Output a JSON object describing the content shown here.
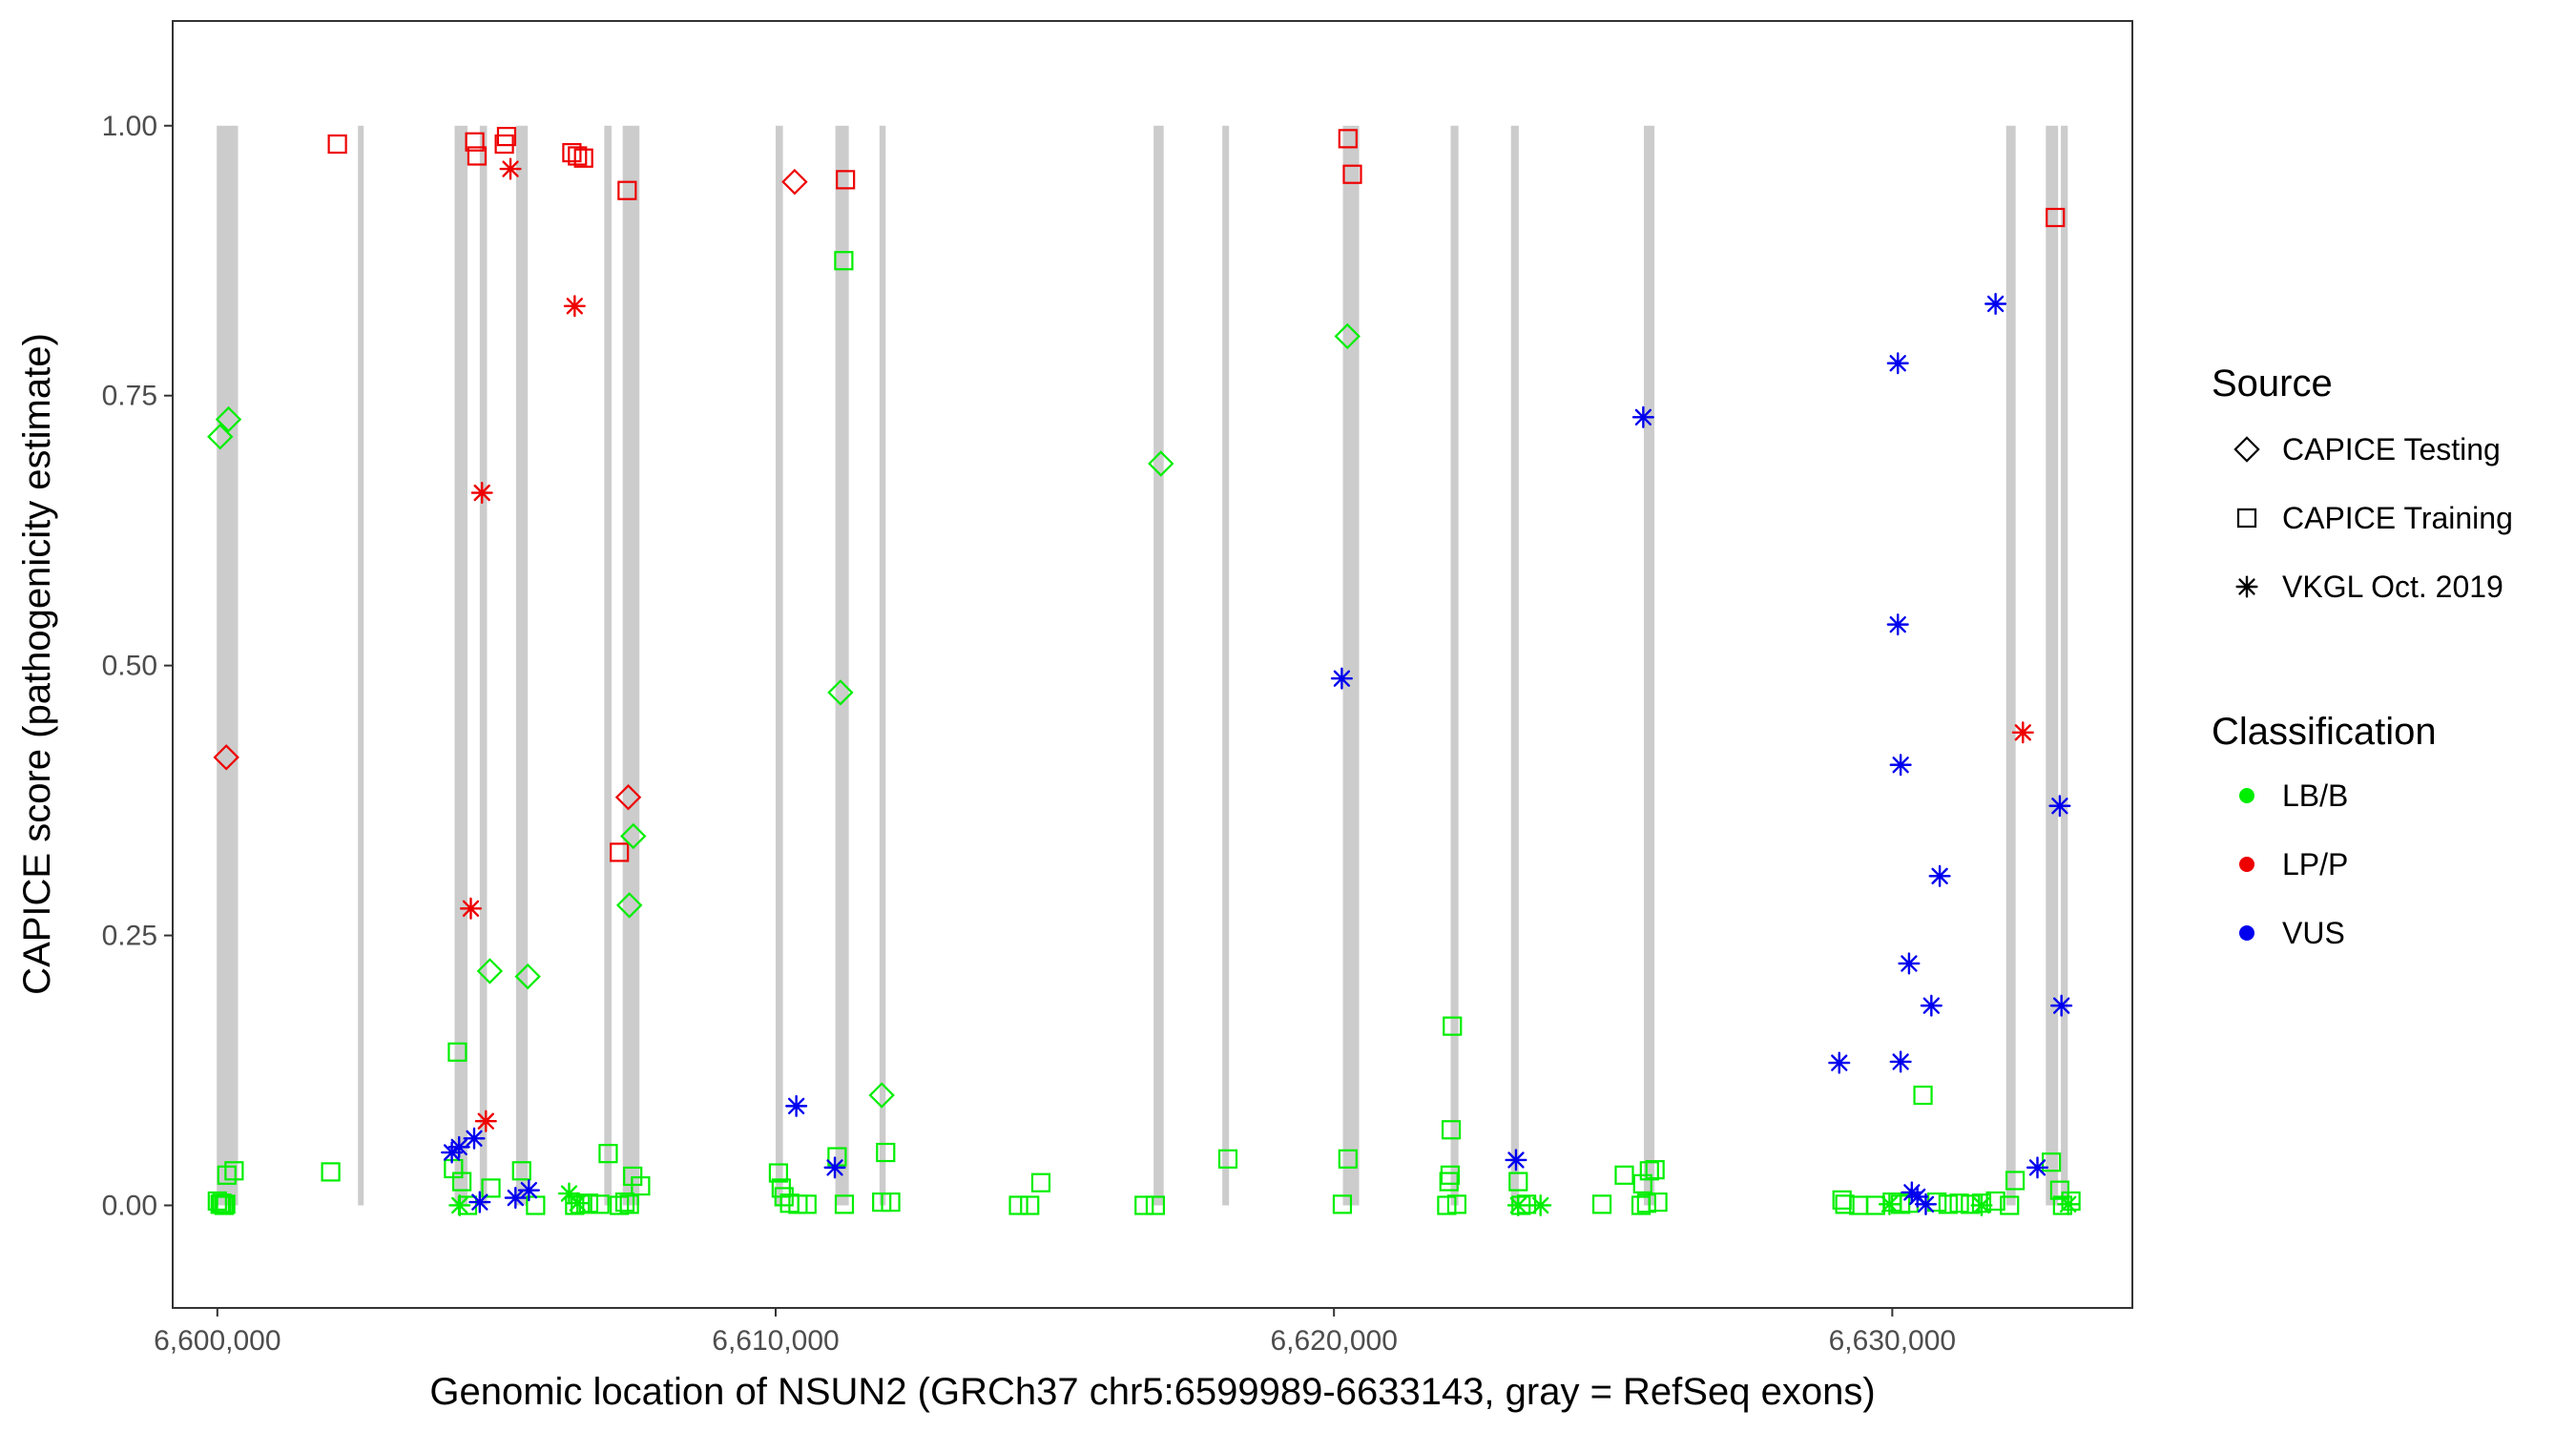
{
  "chart_data": {
    "type": "scatter",
    "xlabel": "Genomic location of NSUN2 (GRCh37 chr5:6599989-6633143, gray = RefSeq exons)",
    "ylabel": "CAPICE score (pathogenicity estimate)",
    "xlim": [
      6599200,
      6634300
    ],
    "ylim": [
      -0.095,
      1.097
    ],
    "x_ticks": [
      6600000,
      6610000,
      6620000,
      6630000
    ],
    "x_tick_labels": [
      "6,600,000",
      "6,610,000",
      "6,620,000",
      "6,630,000"
    ],
    "y_ticks": [
      0,
      0.25,
      0.5,
      0.75,
      1.0
    ],
    "y_tick_labels": [
      "0.00",
      "0.25",
      "0.50",
      "0.75",
      "1.00"
    ],
    "grid": false,
    "exons": [
      [
        6599989,
        6600370
      ],
      [
        6602520,
        6602620
      ],
      [
        6604250,
        6604480
      ],
      [
        6604700,
        6604830
      ],
      [
        6605350,
        6605560
      ],
      [
        6606930,
        6607060
      ],
      [
        6607260,
        6607560
      ],
      [
        6610000,
        6610130
      ],
      [
        6611070,
        6611310
      ],
      [
        6611860,
        6611970
      ],
      [
        6616770,
        6616950
      ],
      [
        6618000,
        6618120
      ],
      [
        6620160,
        6620450
      ],
      [
        6622090,
        6622230
      ],
      [
        6623170,
        6623310
      ],
      [
        6625550,
        6625740
      ],
      [
        6632040,
        6632210
      ],
      [
        6632750,
        6632970
      ],
      [
        6633020,
        6633143
      ]
    ],
    "exon_color": "#cccccc",
    "legend": {
      "position": "right",
      "source_title": "Source",
      "source_items": [
        {
          "label": "CAPICE Testing",
          "shape": "diamond"
        },
        {
          "label": "CAPICE Training",
          "shape": "square"
        },
        {
          "label": "VKGL Oct. 2019",
          "shape": "asterisk"
        }
      ],
      "class_title": "Classification",
      "class_items": [
        {
          "label": "LB/B",
          "color": "#00ee00"
        },
        {
          "label": "LP/P",
          "color": "#ee0000"
        },
        {
          "label": "VUS",
          "color": "#0000ee"
        }
      ]
    },
    "series": [
      {
        "shape": "square",
        "class": "LP/P",
        "points": [
          [
            6602150,
            0.983
          ],
          [
            6604610,
            0.985
          ],
          [
            6604650,
            0.972
          ],
          [
            6605140,
            0.983
          ],
          [
            6605180,
            0.99
          ],
          [
            6606350,
            0.975
          ],
          [
            6606450,
            0.972
          ],
          [
            6606560,
            0.97
          ],
          [
            6607340,
            0.94
          ],
          [
            6607200,
            0.327
          ],
          [
            6611250,
            0.95
          ],
          [
            6620250,
            0.988
          ],
          [
            6620330,
            0.955
          ],
          [
            6632920,
            0.915
          ]
        ]
      },
      {
        "shape": "asterisk",
        "class": "LP/P",
        "points": [
          [
            6605250,
            0.96
          ],
          [
            6606400,
            0.833
          ],
          [
            6604740,
            0.66
          ],
          [
            6604540,
            0.275
          ],
          [
            6604810,
            0.078
          ],
          [
            6632340,
            0.438
          ]
        ]
      },
      {
        "shape": "diamond",
        "class": "LP/P",
        "points": [
          [
            6600160,
            0.415
          ],
          [
            6610340,
            0.948
          ],
          [
            6607360,
            0.378
          ]
        ]
      },
      {
        "shape": "diamond",
        "class": "LB/B",
        "points": [
          [
            6600050,
            0.712
          ],
          [
            6600200,
            0.728
          ],
          [
            6604880,
            0.217
          ],
          [
            6605560,
            0.212
          ],
          [
            6607450,
            0.342
          ],
          [
            6607380,
            0.278
          ],
          [
            6611160,
            0.475
          ],
          [
            6611900,
            0.102
          ],
          [
            6616900,
            0.687
          ],
          [
            6620240,
            0.805
          ]
        ]
      },
      {
        "shape": "square",
        "class": "LB/B",
        "points": [
          [
            6600000,
            0.004
          ],
          [
            6600050,
            0.001
          ],
          [
            6600080,
            0.002
          ],
          [
            6600120,
            0.0
          ],
          [
            6600150,
            0.001
          ],
          [
            6600170,
            0.028
          ],
          [
            6600300,
            0.032
          ],
          [
            6602030,
            0.031
          ],
          [
            6604230,
            0.034
          ],
          [
            6604300,
            0.142
          ],
          [
            6604380,
            0.022
          ],
          [
            6604480,
            0.0
          ],
          [
            6604900,
            0.016
          ],
          [
            6605450,
            0.032
          ],
          [
            6605700,
            0.0
          ],
          [
            6606400,
            0.0
          ],
          [
            6606500,
            0.001
          ],
          [
            6606650,
            0.002
          ],
          [
            6606850,
            0.001
          ],
          [
            6607000,
            0.048
          ],
          [
            6607200,
            0.0
          ],
          [
            6607300,
            0.003
          ],
          [
            6607380,
            0.001
          ],
          [
            6607440,
            0.027
          ],
          [
            6607580,
            0.018
          ],
          [
            6610050,
            0.03
          ],
          [
            6610100,
            0.016
          ],
          [
            6610150,
            0.008
          ],
          [
            6610250,
            0.002
          ],
          [
            6610400,
            0.001
          ],
          [
            6610560,
            0.001
          ],
          [
            6611100,
            0.045
          ],
          [
            6611220,
            0.875
          ],
          [
            6611230,
            0.001
          ],
          [
            6611900,
            0.003
          ],
          [
            6611970,
            0.049
          ],
          [
            6612060,
            0.003
          ],
          [
            6614350,
            0.0
          ],
          [
            6614550,
            0.0
          ],
          [
            6614750,
            0.021
          ],
          [
            6616600,
            0.0
          ],
          [
            6616800,
            0.0
          ],
          [
            6618100,
            0.043
          ],
          [
            6620150,
            0.001
          ],
          [
            6620250,
            0.043
          ],
          [
            6622020,
            0.0
          ],
          [
            6622060,
            0.022
          ],
          [
            6622080,
            0.028
          ],
          [
            6622100,
            0.07
          ],
          [
            6622120,
            0.166
          ],
          [
            6622200,
            0.001
          ],
          [
            6623300,
            0.022
          ],
          [
            6623350,
            0.0
          ],
          [
            6623450,
            0.001
          ],
          [
            6624800,
            0.001
          ],
          [
            6625200,
            0.028
          ],
          [
            6625500,
            0.0
          ],
          [
            6625530,
            0.02
          ],
          [
            6625600,
            0.002
          ],
          [
            6625650,
            0.032
          ],
          [
            6625800,
            0.003
          ],
          [
            6625750,
            0.033
          ],
          [
            6629100,
            0.005
          ],
          [
            6629150,
            0.001
          ],
          [
            6629400,
            0.0
          ],
          [
            6629700,
            0.0
          ],
          [
            6630000,
            0.003
          ],
          [
            6630150,
            0.001
          ],
          [
            6630300,
            0.002
          ],
          [
            6630550,
            0.102
          ],
          [
            6630800,
            0.003
          ],
          [
            6631000,
            0.001
          ],
          [
            6631200,
            0.002
          ],
          [
            6631400,
            0.001
          ],
          [
            6631600,
            0.002
          ],
          [
            6631850,
            0.004
          ],
          [
            6632100,
            0.0
          ],
          [
            6632200,
            0.023
          ],
          [
            6632850,
            0.04
          ],
          [
            6633000,
            0.014
          ],
          [
            6633050,
            0.0
          ],
          [
            6633200,
            0.004
          ]
        ]
      },
      {
        "shape": "asterisk",
        "class": "LB/B",
        "points": [
          [
            6604340,
            0.0
          ],
          [
            6606300,
            0.011
          ],
          [
            6606450,
            0.002
          ],
          [
            6623300,
            0.0
          ],
          [
            6623700,
            0.0
          ],
          [
            6629950,
            0.001
          ],
          [
            6631600,
            0.0
          ],
          [
            6633150,
            0.001
          ]
        ]
      },
      {
        "shape": "asterisk",
        "class": "VUS",
        "points": [
          [
            6604200,
            0.049
          ],
          [
            6604330,
            0.054
          ],
          [
            6604600,
            0.062
          ],
          [
            6604700,
            0.003
          ],
          [
            6605340,
            0.007
          ],
          [
            6605580,
            0.014
          ],
          [
            6610370,
            0.092
          ],
          [
            6611060,
            0.035
          ],
          [
            6620140,
            0.488
          ],
          [
            6623260,
            0.042
          ],
          [
            6625540,
            0.73
          ],
          [
            6629050,
            0.132
          ],
          [
            6630100,
            0.78
          ],
          [
            6630100,
            0.538
          ],
          [
            6630150,
            0.133
          ],
          [
            6630150,
            0.408
          ],
          [
            6630300,
            0.224
          ],
          [
            6630450,
            0.008
          ],
          [
            6630350,
            0.012
          ],
          [
            6630600,
            0.001
          ],
          [
            6630700,
            0.185
          ],
          [
            6630850,
            0.305
          ],
          [
            6631850,
            0.835
          ],
          [
            6632600,
            0.035
          ],
          [
            6633000,
            0.37
          ],
          [
            6633030,
            0.185
          ]
        ]
      }
    ]
  }
}
